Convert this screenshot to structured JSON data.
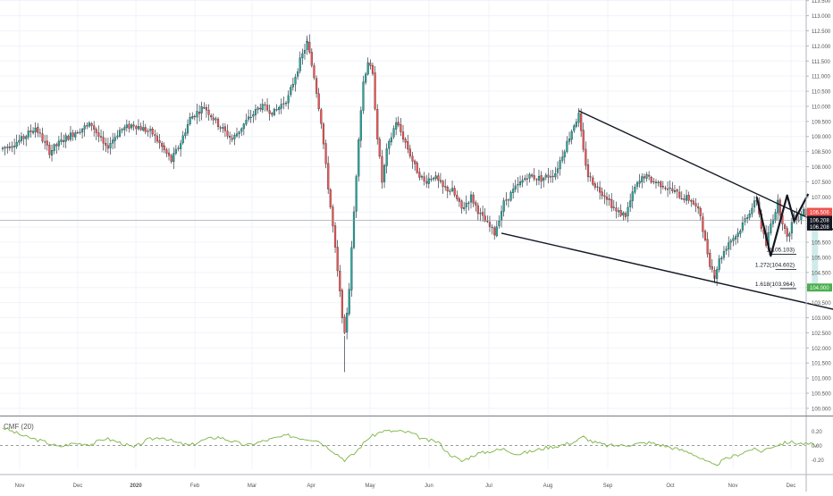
{
  "chart_data": {
    "type": "candlestick",
    "price_axis": {
      "ticks": [
        "113.500",
        "113.000",
        "112.500",
        "112.000",
        "111.500",
        "111.000",
        "110.500",
        "110.000",
        "109.500",
        "109.000",
        "108.500",
        "108.000",
        "107.500",
        "107.000",
        "106.500",
        "106.000",
        "105.500",
        "105.000",
        "104.500",
        "104.000",
        "103.500",
        "103.000",
        "102.500",
        "102.000",
        "101.500",
        "101.000",
        "100.500",
        "100.000"
      ],
      "range": [
        99.76,
        113.52
      ]
    },
    "price_badges": [
      {
        "label": "106.506",
        "value": 106.506,
        "color": "#ef5350"
      },
      {
        "label": "106.208",
        "value": 106.24,
        "color": "#131722"
      },
      {
        "label": "106.208",
        "value": 106.02,
        "color": "#131722"
      },
      {
        "label": "104.000",
        "value": 104.0,
        "color": "#4caf50"
      }
    ],
    "time_axis": {
      "labels": [
        "Nov",
        "Dec",
        "2020",
        "Feb",
        "Mar",
        "Apr",
        "May",
        "Jun",
        "Jul",
        "Aug",
        "Sep",
        "Oct",
        "Nov",
        "Dec"
      ],
      "bold": [
        "2020"
      ]
    },
    "last_price_line": 106.22,
    "candles_anchor": [
      [
        0,
        108.6
      ],
      [
        8,
        108.9
      ],
      [
        14,
        109.3
      ],
      [
        20,
        108.5
      ],
      [
        26,
        108.9
      ],
      [
        32,
        109.2
      ],
      [
        38,
        109.4
      ],
      [
        44,
        108.6
      ],
      [
        50,
        109.2
      ],
      [
        56,
        109.4
      ],
      [
        64,
        109.1
      ],
      [
        72,
        108.2
      ],
      [
        76,
        108.8
      ],
      [
        80,
        109.6
      ],
      [
        86,
        110.0
      ],
      [
        92,
        109.4
      ],
      [
        98,
        108.9
      ],
      [
        104,
        109.5
      ],
      [
        110,
        110.0
      ],
      [
        116,
        109.8
      ],
      [
        122,
        110.3
      ],
      [
        127,
        111.5
      ],
      [
        130,
        112.1
      ],
      [
        133,
        111.0
      ],
      [
        136,
        109.5
      ],
      [
        138,
        108.0
      ],
      [
        141,
        106.0
      ],
      [
        143,
        104.5
      ],
      [
        145,
        103.1
      ],
      [
        146,
        102.4
      ],
      [
        148,
        104.0
      ],
      [
        150,
        106.5
      ],
      [
        152,
        109.0
      ],
      [
        154,
        110.8
      ],
      [
        156,
        111.5
      ],
      [
        158,
        111.0
      ],
      [
        160,
        109.0
      ],
      [
        162,
        107.5
      ],
      [
        164,
        108.5
      ],
      [
        168,
        109.5
      ],
      [
        172,
        108.8
      ],
      [
        176,
        108.0
      ],
      [
        180,
        107.5
      ],
      [
        184,
        107.7
      ],
      [
        188,
        107.3
      ],
      [
        192,
        107.2
      ],
      [
        196,
        106.6
      ],
      [
        200,
        107.0
      ],
      [
        204,
        106.4
      ],
      [
        208,
        106.0
      ],
      [
        210,
        105.8
      ],
      [
        214,
        106.8
      ],
      [
        218,
        107.2
      ],
      [
        224,
        107.7
      ],
      [
        230,
        107.6
      ],
      [
        236,
        107.8
      ],
      [
        240,
        108.6
      ],
      [
        244,
        109.4
      ],
      [
        246,
        109.7
      ],
      [
        248,
        108.5
      ],
      [
        250,
        107.7
      ],
      [
        254,
        107.3
      ],
      [
        258,
        107.0
      ],
      [
        262,
        106.5
      ],
      [
        266,
        106.4
      ],
      [
        270,
        107.3
      ],
      [
        274,
        107.7
      ],
      [
        278,
        107.5
      ],
      [
        282,
        107.4
      ],
      [
        286,
        107.2
      ],
      [
        290,
        107.0
      ],
      [
        294,
        106.9
      ],
      [
        298,
        106.4
      ],
      [
        300,
        105.5
      ],
      [
        302,
        104.8
      ],
      [
        304,
        104.4
      ],
      [
        306,
        104.9
      ],
      [
        310,
        105.5
      ],
      [
        314,
        105.8
      ],
      [
        318,
        106.4
      ],
      [
        322,
        106.9
      ],
      [
        324,
        106.0
      ],
      [
        326,
        105.4
      ],
      [
        328,
        106.1
      ],
      [
        331,
        106.8
      ],
      [
        333,
        106.2
      ],
      [
        335,
        105.6
      ],
      [
        338,
        106.4
      ],
      [
        340,
        106.3
      ],
      [
        342,
        106.6
      ],
      [
        344,
        106.3
      ]
    ],
    "trendlines": [
      {
        "name": "upper",
        "from": [
          246,
          109.85
        ],
        "to": [
          376,
          105.15
        ]
      },
      {
        "name": "lower",
        "from": [
          213,
          105.8
        ],
        "to": [
          376,
          102.9
        ]
      }
    ],
    "harmonic_pattern": [
      [
        322,
        107.0
      ],
      [
        328,
        105.05
      ],
      [
        335,
        107.05
      ],
      [
        338,
        106.2
      ],
      [
        344,
        107.1
      ]
    ],
    "fibonacci_levels": [
      {
        "label": "1(105.103)",
        "value": 105.103
      },
      {
        "label": "1.272(104.602)",
        "value": 104.602
      },
      {
        "label": "1.618(103.964)",
        "value": 103.964
      }
    ],
    "target_zone": {
      "from": 106.1,
      "to": 104.0
    },
    "indicator": {
      "name": "CMF (20)",
      "ticks": [
        "0.20",
        "0.00",
        "-0.20"
      ],
      "range": [
        -0.33,
        0.38
      ],
      "zero_line": 0.0,
      "anchor": [
        [
          0,
          0.25
        ],
        [
          10,
          0.12
        ],
        [
          18,
          0.05
        ],
        [
          24,
          -0.02
        ],
        [
          30,
          0.03
        ],
        [
          38,
          0.02
        ],
        [
          44,
          0.1
        ],
        [
          50,
          0.04
        ],
        [
          56,
          -0.03
        ],
        [
          62,
          0.08
        ],
        [
          68,
          0.12
        ],
        [
          74,
          0.04
        ],
        [
          80,
          0.0
        ],
        [
          86,
          0.08
        ],
        [
          92,
          0.12
        ],
        [
          98,
          0.06
        ],
        [
          104,
          0.0
        ],
        [
          110,
          0.05
        ],
        [
          116,
          0.1
        ],
        [
          122,
          0.14
        ],
        [
          128,
          0.1
        ],
        [
          134,
          0.08
        ],
        [
          140,
          -0.05
        ],
        [
          146,
          -0.2
        ],
        [
          150,
          -0.12
        ],
        [
          156,
          0.1
        ],
        [
          162,
          0.2
        ],
        [
          168,
          0.2
        ],
        [
          174,
          0.18
        ],
        [
          180,
          0.08
        ],
        [
          186,
          0.05
        ],
        [
          190,
          -0.1
        ],
        [
          196,
          -0.22
        ],
        [
          202,
          -0.12
        ],
        [
          208,
          -0.08
        ],
        [
          214,
          -0.05
        ],
        [
          220,
          -0.12
        ],
        [
          226,
          -0.08
        ],
        [
          232,
          -0.03
        ],
        [
          238,
          0.0
        ],
        [
          244,
          0.05
        ],
        [
          248,
          0.12
        ],
        [
          252,
          0.05
        ],
        [
          258,
          0.0
        ],
        [
          264,
          0.0
        ],
        [
          270,
          0.02
        ],
        [
          276,
          0.04
        ],
        [
          282,
          0.0
        ],
        [
          288,
          -0.05
        ],
        [
          294,
          -0.1
        ],
        [
          300,
          -0.22
        ],
        [
          304,
          -0.28
        ],
        [
          308,
          -0.2
        ],
        [
          312,
          -0.15
        ],
        [
          316,
          -0.1
        ],
        [
          320,
          -0.05
        ],
        [
          324,
          -0.08
        ],
        [
          328,
          -0.02
        ],
        [
          332,
          0.02
        ],
        [
          336,
          0.05
        ],
        [
          340,
          0.03
        ],
        [
          344,
          0.02
        ],
        [
          348,
          0.0
        ]
      ]
    }
  }
}
